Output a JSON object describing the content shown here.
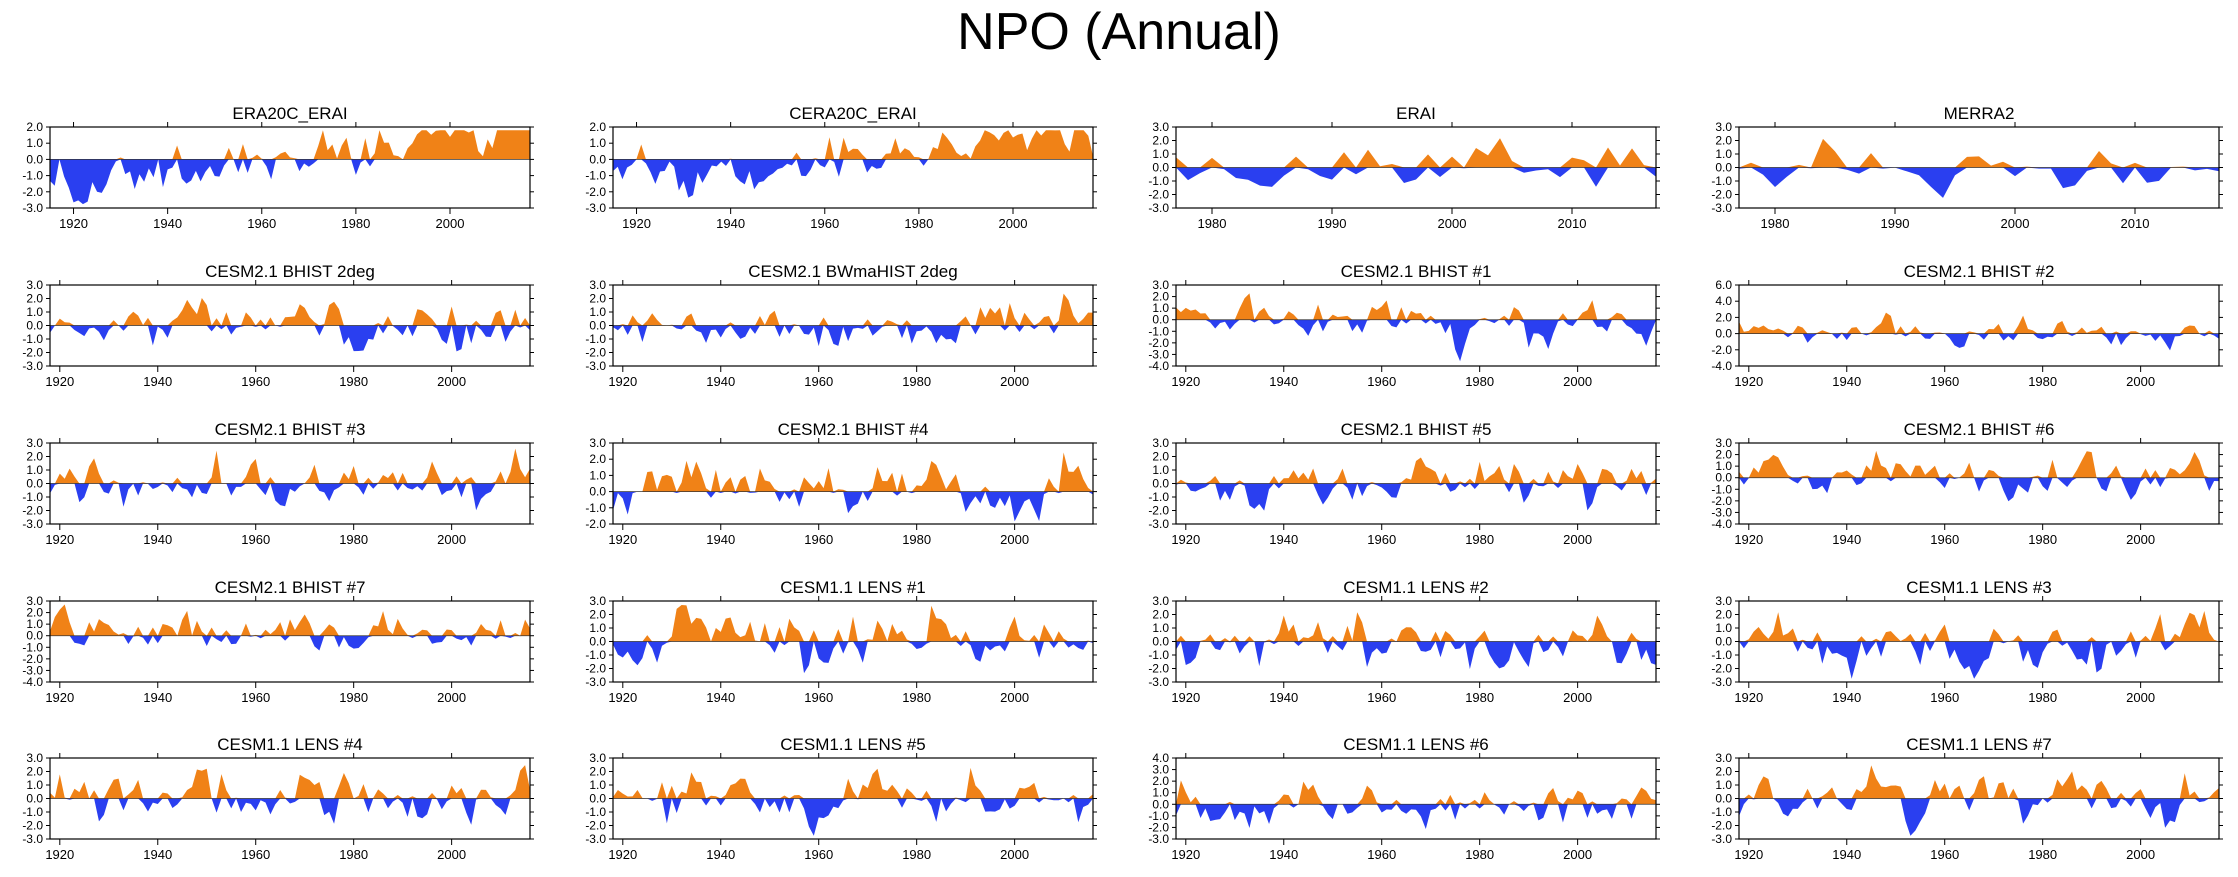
{
  "title": "NPO (Annual)",
  "colors": {
    "positive": "#f08217",
    "negative": "#2a3ff0",
    "axis": "#000000"
  },
  "chart_data": [
    {
      "type": "area",
      "title": "ERA20C_ERAI",
      "x_start": 1915,
      "x_end": 2017,
      "xticks": [
        1920,
        1940,
        1960,
        1980,
        2000
      ],
      "yticks": [
        "2.0",
        "1.0",
        "0.0",
        "-1.0",
        "-2.0",
        "-3.0"
      ],
      "ylim": [
        -3,
        2
      ],
      "seed": 11,
      "amp": 0.8,
      "trend": 1
    },
    {
      "type": "area",
      "title": "CERA20C_ERAI",
      "x_start": 1915,
      "x_end": 2017,
      "xticks": [
        1920,
        1940,
        1960,
        1980,
        2000
      ],
      "yticks": [
        "2.0",
        "1.0",
        "0.0",
        "-1.0",
        "-2.0",
        "-3.0"
      ],
      "ylim": [
        -3,
        2
      ],
      "seed": 12,
      "amp": 0.8,
      "trend": 1
    },
    {
      "type": "area",
      "title": "ERAI",
      "x_start": 1977,
      "x_end": 2017,
      "xticks": [
        1980,
        1990,
        2000,
        2010
      ],
      "yticks": [
        "3.0",
        "2.0",
        "1.0",
        "0.0",
        "-1.0",
        "-2.0",
        "-3.0"
      ],
      "ylim": [
        -3,
        3
      ],
      "seed": 13,
      "amp": 1.1,
      "trend": 0
    },
    {
      "type": "area",
      "title": "MERRA2",
      "x_start": 1977,
      "x_end": 2017,
      "xticks": [
        1980,
        1990,
        2000,
        2010
      ],
      "yticks": [
        "3.0",
        "2.0",
        "1.0",
        "0.0",
        "-1.0",
        "-2.0",
        "-3.0"
      ],
      "ylim": [
        -3,
        3
      ],
      "seed": 14,
      "amp": 1.1,
      "trend": 0
    },
    {
      "type": "area",
      "title": "CESM2.1 BHIST 2deg",
      "x_start": 1918,
      "x_end": 2016,
      "xticks": [
        1920,
        1940,
        1960,
        1980,
        2000
      ],
      "yticks": [
        "3.0",
        "2.0",
        "1.0",
        "0.0",
        "-1.0",
        "-2.0",
        "-3.0"
      ],
      "ylim": [
        -3,
        3
      ],
      "seed": 21,
      "amp": 1.0,
      "trend": 0
    },
    {
      "type": "area",
      "title": "CESM2.1 BWmaHIST 2deg",
      "x_start": 1918,
      "x_end": 2016,
      "xticks": [
        1920,
        1940,
        1960,
        1980,
        2000
      ],
      "yticks": [
        "3.0",
        "2.0",
        "1.0",
        "0.0",
        "-1.0",
        "-2.0",
        "-3.0"
      ],
      "ylim": [
        -3,
        3
      ],
      "seed": 22,
      "amp": 1.0,
      "trend": 0
    },
    {
      "type": "area",
      "title": "CESM2.1 BHIST #1",
      "x_start": 1918,
      "x_end": 2016,
      "xticks": [
        1920,
        1940,
        1960,
        1980,
        2000
      ],
      "yticks": [
        "3.0",
        "2.0",
        "1.0",
        "0.0",
        "-1.0",
        "-2.0",
        "-3.0",
        "-4.0"
      ],
      "ylim": [
        -4,
        3
      ],
      "seed": 23,
      "amp": 1.0,
      "trend": 0
    },
    {
      "type": "area",
      "title": "CESM2.1 BHIST #2",
      "x_start": 1918,
      "x_end": 2016,
      "xticks": [
        1920,
        1940,
        1960,
        1980,
        2000
      ],
      "yticks": [
        "6.0",
        "4.0",
        "2.0",
        "0.0",
        "-2.0",
        "-4.0"
      ],
      "ylim": [
        -4,
        6
      ],
      "seed": 24,
      "amp": 1.0,
      "trend": 0
    },
    {
      "type": "area",
      "title": "CESM2.1 BHIST #3",
      "x_start": 1918,
      "x_end": 2016,
      "xticks": [
        1920,
        1940,
        1960,
        1980,
        2000
      ],
      "yticks": [
        "3.0",
        "2.0",
        "1.0",
        "0.0",
        "-1.0",
        "-2.0",
        "-3.0"
      ],
      "ylim": [
        -3,
        3
      ],
      "seed": 31,
      "amp": 1.0,
      "trend": 0
    },
    {
      "type": "area",
      "title": "CESM2.1 BHIST #4",
      "x_start": 1918,
      "x_end": 2016,
      "xticks": [
        1920,
        1940,
        1960,
        1980,
        2000
      ],
      "yticks": [
        "3.0",
        "2.0",
        "1.0",
        "0.0",
        "-1.0",
        "-2.0"
      ],
      "ylim": [
        -2,
        3
      ],
      "seed": 32,
      "amp": 0.9,
      "trend": 0
    },
    {
      "type": "area",
      "title": "CESM2.1 BHIST #5",
      "x_start": 1918,
      "x_end": 2016,
      "xticks": [
        1920,
        1940,
        1960,
        1980,
        2000
      ],
      "yticks": [
        "3.0",
        "2.0",
        "1.0",
        "0.0",
        "-1.0",
        "-2.0",
        "-3.0"
      ],
      "ylim": [
        -3,
        3
      ],
      "seed": 33,
      "amp": 1.0,
      "trend": 0
    },
    {
      "type": "area",
      "title": "CESM2.1 BHIST #6",
      "x_start": 1918,
      "x_end": 2016,
      "xticks": [
        1920,
        1940,
        1960,
        1980,
        2000
      ],
      "yticks": [
        "3.0",
        "2.0",
        "1.0",
        "0.0",
        "-1.0",
        "-2.0",
        "-3.0",
        "-4.0"
      ],
      "ylim": [
        -4,
        3
      ],
      "seed": 34,
      "amp": 1.0,
      "trend": 0
    },
    {
      "type": "area",
      "title": "CESM2.1 BHIST #7",
      "x_start": 1918,
      "x_end": 2016,
      "xticks": [
        1920,
        1940,
        1960,
        1980,
        2000
      ],
      "yticks": [
        "3.0",
        "2.0",
        "1.0",
        "0.0",
        "-1.0",
        "-2.0",
        "-3.0",
        "-4.0"
      ],
      "ylim": [
        -4,
        3
      ],
      "seed": 41,
      "amp": 1.0,
      "trend": 0
    },
    {
      "type": "area",
      "title": "CESM1.1 LENS #1",
      "x_start": 1918,
      "x_end": 2016,
      "xticks": [
        1920,
        1940,
        1960,
        1980,
        2000
      ],
      "yticks": [
        "3.0",
        "2.0",
        "1.0",
        "0.0",
        "-1.0",
        "-2.0",
        "-3.0"
      ],
      "ylim": [
        -3,
        3
      ],
      "seed": 42,
      "amp": 1.0,
      "trend": 0
    },
    {
      "type": "area",
      "title": "CESM1.1 LENS #2",
      "x_start": 1918,
      "x_end": 2016,
      "xticks": [
        1920,
        1940,
        1960,
        1980,
        2000
      ],
      "yticks": [
        "3.0",
        "2.0",
        "1.0",
        "0.0",
        "-1.0",
        "-2.0",
        "-3.0"
      ],
      "ylim": [
        -3,
        3
      ],
      "seed": 43,
      "amp": 1.0,
      "trend": 0
    },
    {
      "type": "area",
      "title": "CESM1.1 LENS #3",
      "x_start": 1918,
      "x_end": 2016,
      "xticks": [
        1920,
        1940,
        1960,
        1980,
        2000
      ],
      "yticks": [
        "3.0",
        "2.0",
        "1.0",
        "0.0",
        "-1.0",
        "-2.0",
        "-3.0"
      ],
      "ylim": [
        -3,
        3
      ],
      "seed": 44,
      "amp": 1.0,
      "trend": 0
    },
    {
      "type": "area",
      "title": "CESM1.1 LENS #4",
      "x_start": 1918,
      "x_end": 2016,
      "xticks": [
        1920,
        1940,
        1960,
        1980,
        2000
      ],
      "yticks": [
        "3.0",
        "2.0",
        "1.0",
        "0.0",
        "-1.0",
        "-2.0",
        "-3.0"
      ],
      "ylim": [
        -3,
        3
      ],
      "seed": 51,
      "amp": 1.0,
      "trend": 0
    },
    {
      "type": "area",
      "title": "CESM1.1 LENS #5",
      "x_start": 1918,
      "x_end": 2016,
      "xticks": [
        1920,
        1940,
        1960,
        1980,
        2000
      ],
      "yticks": [
        "3.0",
        "2.0",
        "1.0",
        "0.0",
        "-1.0",
        "-2.0",
        "-3.0"
      ],
      "ylim": [
        -3,
        3
      ],
      "seed": 52,
      "amp": 1.0,
      "trend": 0
    },
    {
      "type": "area",
      "title": "CESM1.1 LENS #6",
      "x_start": 1918,
      "x_end": 2016,
      "xticks": [
        1920,
        1940,
        1960,
        1980,
        2000
      ],
      "yticks": [
        "4.0",
        "3.0",
        "2.0",
        "1.0",
        "0.0",
        "-1.0",
        "-2.0",
        "-3.0"
      ],
      "ylim": [
        -3,
        4
      ],
      "seed": 53,
      "amp": 1.0,
      "trend": 0
    },
    {
      "type": "area",
      "title": "CESM1.1 LENS #7",
      "x_start": 1918,
      "x_end": 2016,
      "xticks": [
        1920,
        1940,
        1960,
        1980,
        2000
      ],
      "yticks": [
        "3.0",
        "2.0",
        "1.0",
        "0.0",
        "-1.0",
        "-2.0",
        "-3.0"
      ],
      "ylim": [
        -3,
        3
      ],
      "seed": 54,
      "amp": 1.0,
      "trend": 0
    }
  ]
}
